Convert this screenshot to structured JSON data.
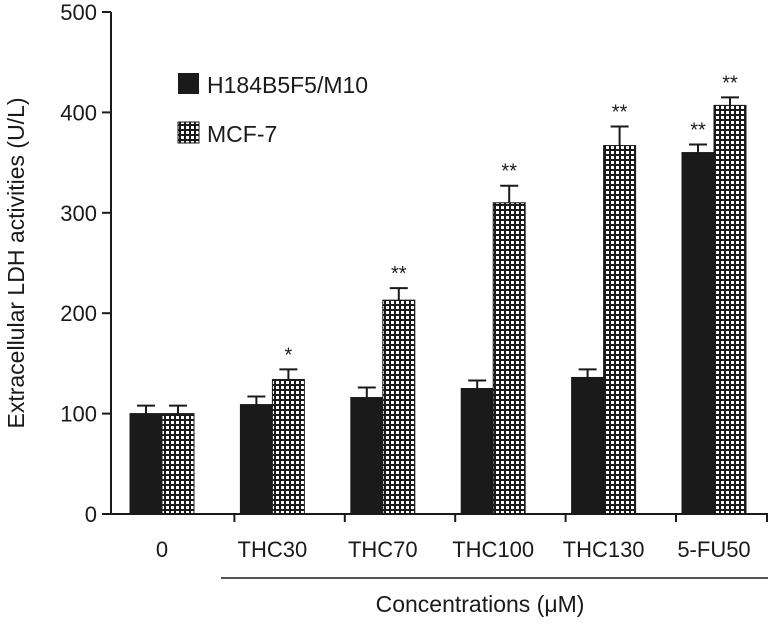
{
  "chart_data": {
    "type": "bar",
    "title": "",
    "xlabel": "Concentrations (μM)",
    "ylabel": "Extracellular LDH activities (U/L)",
    "ylim": [
      0,
      500
    ],
    "yticks": [
      "0",
      "100",
      "200",
      "300",
      "400",
      "500"
    ],
    "categories": [
      "0",
      "THC30",
      "THC70",
      "THC100",
      "THC130",
      "5-FU50"
    ],
    "series": [
      {
        "name": "H184B5F5/M10",
        "pattern": "solid",
        "values": [
          100,
          109,
          116,
          125,
          136,
          360
        ],
        "errors": [
          8,
          8,
          10,
          8,
          8,
          8
        ],
        "significance": [
          "",
          "",
          "",
          "",
          "",
          "**"
        ]
      },
      {
        "name": "MCF-7",
        "pattern": "dotted",
        "values": [
          100,
          134,
          213,
          310,
          367,
          407
        ],
        "errors": [
          8,
          10,
          12,
          17,
          19,
          8
        ],
        "significance": [
          "",
          "*",
          "**",
          "**",
          "**",
          "**"
        ]
      }
    ],
    "legend_position": "top-left"
  },
  "colors": {
    "ink": "#1a1a1a",
    "background": "#ffffff"
  }
}
